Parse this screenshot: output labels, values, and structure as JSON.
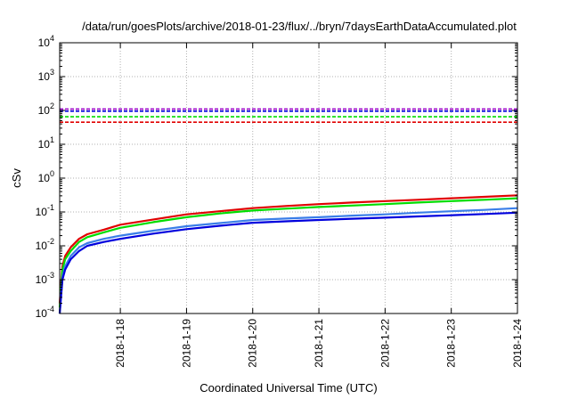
{
  "chart_data": {
    "type": "line",
    "title": "/data/run/goesPlots/archive/2018-01-23/flux/../bryn/7daysEarthDataAccumulated.plot",
    "xlabel": "Coordinated Universal Time (UTC)",
    "ylabel": "cSv",
    "y_scale": "log",
    "ylim": [
      0.0001,
      10000
    ],
    "xlim": [
      "2018-01-17T02:00",
      "2018-01-24T00:00"
    ],
    "y_ticks": [
      {
        "value": 0.0001,
        "base": "10",
        "exp": "-4"
      },
      {
        "value": 0.001,
        "base": "10",
        "exp": "-3"
      },
      {
        "value": 0.01,
        "base": "10",
        "exp": "-2"
      },
      {
        "value": 0.1,
        "base": "10",
        "exp": "-1"
      },
      {
        "value": 1,
        "base": "10",
        "exp": "0"
      },
      {
        "value": 10,
        "base": "10",
        "exp": "1"
      },
      {
        "value": 100,
        "base": "10",
        "exp": "2"
      },
      {
        "value": 1000,
        "base": "10",
        "exp": "3"
      },
      {
        "value": 10000,
        "base": "10",
        "exp": "4"
      }
    ],
    "x_ticks": [
      {
        "value": "2018-01-18T00:00",
        "label": "2018-1-18"
      },
      {
        "value": "2018-01-19T00:00",
        "label": "2018-1-19"
      },
      {
        "value": "2018-01-20T00:00",
        "label": "2018-1-20"
      },
      {
        "value": "2018-01-21T00:00",
        "label": "2018-1-21"
      },
      {
        "value": "2018-01-22T00:00",
        "label": "2018-1-22"
      },
      {
        "value": "2018-01-23T00:00",
        "label": "2018-1-23"
      },
      {
        "value": "2018-01-24T00:00",
        "label": "2018-1-24"
      }
    ],
    "grid": true,
    "legend": "none",
    "series": [
      {
        "color": "#e00000",
        "style": "solid",
        "points": [
          [
            "2018-01-17T02:00",
            0.0002
          ],
          [
            "2018-01-17T03:00",
            0.0025
          ],
          [
            "2018-01-17T04:00",
            0.005
          ],
          [
            "2018-01-17T06:00",
            0.009
          ],
          [
            "2018-01-17T09:00",
            0.016
          ],
          [
            "2018-01-17T12:00",
            0.022
          ],
          [
            "2018-01-17T18:00",
            0.03
          ],
          [
            "2018-01-18T00:00",
            0.042
          ],
          [
            "2018-01-18T12:00",
            0.06
          ],
          [
            "2018-01-19T00:00",
            0.085
          ],
          [
            "2018-01-19T12:00",
            0.105
          ],
          [
            "2018-01-20T00:00",
            0.13
          ],
          [
            "2018-01-20T12:00",
            0.15
          ],
          [
            "2018-01-21T00:00",
            0.17
          ],
          [
            "2018-01-21T12:00",
            0.19
          ],
          [
            "2018-01-22T00:00",
            0.21
          ],
          [
            "2018-01-22T12:00",
            0.23
          ],
          [
            "2018-01-23T00:00",
            0.255
          ],
          [
            "2018-01-23T12:00",
            0.28
          ],
          [
            "2018-01-24T00:00",
            0.31
          ]
        ]
      },
      {
        "color": "#00dd00",
        "style": "solid",
        "points": [
          [
            "2018-01-17T02:00",
            0.00015
          ],
          [
            "2018-01-17T03:00",
            0.002
          ],
          [
            "2018-01-17T04:00",
            0.004
          ],
          [
            "2018-01-17T06:00",
            0.007
          ],
          [
            "2018-01-17T09:00",
            0.013
          ],
          [
            "2018-01-17T12:00",
            0.018
          ],
          [
            "2018-01-17T18:00",
            0.025
          ],
          [
            "2018-01-18T00:00",
            0.034
          ],
          [
            "2018-01-18T12:00",
            0.05
          ],
          [
            "2018-01-19T00:00",
            0.07
          ],
          [
            "2018-01-19T12:00",
            0.09
          ],
          [
            "2018-01-20T00:00",
            0.11
          ],
          [
            "2018-01-20T12:00",
            0.125
          ],
          [
            "2018-01-21T00:00",
            0.14
          ],
          [
            "2018-01-21T12:00",
            0.155
          ],
          [
            "2018-01-22T00:00",
            0.17
          ],
          [
            "2018-01-22T12:00",
            0.19
          ],
          [
            "2018-01-23T00:00",
            0.21
          ],
          [
            "2018-01-23T12:00",
            0.23
          ],
          [
            "2018-01-24T00:00",
            0.255
          ]
        ]
      },
      {
        "color": "#3a7ee8",
        "style": "solid",
        "points": [
          [
            "2018-01-17T02:00",
            0.0001
          ],
          [
            "2018-01-17T03:00",
            0.0012
          ],
          [
            "2018-01-17T04:00",
            0.0025
          ],
          [
            "2018-01-17T06:00",
            0.005
          ],
          [
            "2018-01-17T09:00",
            0.009
          ],
          [
            "2018-01-17T12:00",
            0.012
          ],
          [
            "2018-01-17T18:00",
            0.016
          ],
          [
            "2018-01-18T00:00",
            0.02
          ],
          [
            "2018-01-18T12:00",
            0.028
          ],
          [
            "2018-01-19T00:00",
            0.038
          ],
          [
            "2018-01-19T12:00",
            0.047
          ],
          [
            "2018-01-20T00:00",
            0.058
          ],
          [
            "2018-01-20T12:00",
            0.064
          ],
          [
            "2018-01-21T00:00",
            0.07
          ],
          [
            "2018-01-21T12:00",
            0.078
          ],
          [
            "2018-01-22T00:00",
            0.085
          ],
          [
            "2018-01-22T12:00",
            0.095
          ],
          [
            "2018-01-23T00:00",
            0.105
          ],
          [
            "2018-01-23T12:00",
            0.115
          ],
          [
            "2018-01-24T00:00",
            0.13
          ]
        ]
      },
      {
        "color": "#0000dd",
        "style": "solid",
        "points": [
          [
            "2018-01-17T02:00",
            0.0001
          ],
          [
            "2018-01-17T03:00",
            0.001
          ],
          [
            "2018-01-17T04:00",
            0.002
          ],
          [
            "2018-01-17T06:00",
            0.004
          ],
          [
            "2018-01-17T09:00",
            0.007
          ],
          [
            "2018-01-17T12:00",
            0.01
          ],
          [
            "2018-01-17T18:00",
            0.013
          ],
          [
            "2018-01-18T00:00",
            0.016
          ],
          [
            "2018-01-18T12:00",
            0.023
          ],
          [
            "2018-01-19T00:00",
            0.031
          ],
          [
            "2018-01-19T12:00",
            0.039
          ],
          [
            "2018-01-20T00:00",
            0.048
          ],
          [
            "2018-01-20T12:00",
            0.053
          ],
          [
            "2018-01-21T00:00",
            0.058
          ],
          [
            "2018-01-21T12:00",
            0.063
          ],
          [
            "2018-01-22T00:00",
            0.068
          ],
          [
            "2018-01-22T12:00",
            0.074
          ],
          [
            "2018-01-23T00:00",
            0.08
          ],
          [
            "2018-01-23T12:00",
            0.087
          ],
          [
            "2018-01-24T00:00",
            0.095
          ]
        ]
      },
      {
        "color": "#9900cc",
        "style": "dashed",
        "points": [
          [
            "2018-01-17T02:00",
            110
          ],
          [
            "2018-01-24T00:00",
            110
          ]
        ]
      },
      {
        "color": "#0000dd",
        "style": "dashed",
        "points": [
          [
            "2018-01-17T02:00",
            95
          ],
          [
            "2018-01-24T00:00",
            95
          ]
        ]
      },
      {
        "color": "#00dd00",
        "style": "dashed",
        "points": [
          [
            "2018-01-17T02:00",
            65
          ],
          [
            "2018-01-24T00:00",
            65
          ]
        ]
      },
      {
        "color": "#e00000",
        "style": "dashed",
        "points": [
          [
            "2018-01-17T02:00",
            45
          ],
          [
            "2018-01-24T00:00",
            45
          ]
        ]
      }
    ]
  }
}
